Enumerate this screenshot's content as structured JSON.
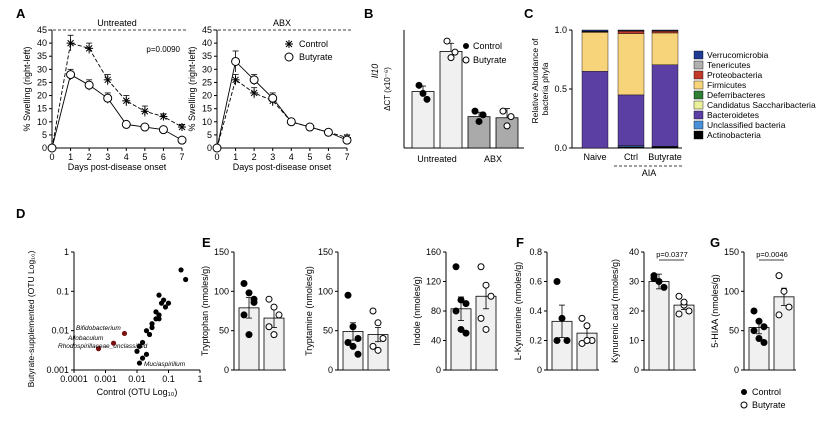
{
  "panels": {
    "A": "A",
    "B": "B",
    "C": "C",
    "D": "D",
    "E": "E",
    "F": "F",
    "G": "G"
  },
  "chart_data": [
    {
      "id": "A1",
      "type": "line",
      "title": "Untreated",
      "xlabel": "Days post-disease onset",
      "ylabel": "% Swelling (right-left)",
      "x": [
        0,
        1,
        2,
        3,
        4,
        5,
        6,
        7
      ],
      "ylim": [
        0,
        45
      ],
      "yticks": [
        0,
        5,
        10,
        15,
        20,
        25,
        30,
        35,
        40,
        45
      ],
      "annotation": "p=0.0090",
      "series": [
        {
          "name": "Control",
          "marker": "asterisk",
          "values": [
            0,
            40,
            38,
            26,
            18,
            14,
            12,
            8
          ],
          "err": [
            0,
            3,
            2,
            2,
            2,
            2,
            1,
            1
          ]
        },
        {
          "name": "Butyrate",
          "marker": "open-circle",
          "values": [
            0,
            28,
            24,
            19,
            9,
            8,
            7,
            3
          ],
          "err": [
            0,
            2,
            2,
            2,
            1,
            1,
            1,
            1
          ]
        }
      ]
    },
    {
      "id": "A2",
      "type": "line",
      "title": "ABX",
      "xlabel": "Days post-disease onset",
      "ylabel": "% Swelling (right-left)",
      "x": [
        0,
        1,
        2,
        3,
        4,
        5,
        6,
        7
      ],
      "ylim": [
        0,
        45
      ],
      "yticks": [
        0,
        5,
        10,
        15,
        20,
        25,
        30,
        35,
        40,
        45
      ],
      "series": [
        {
          "name": "Control",
          "marker": "asterisk",
          "values": [
            0,
            26,
            21,
            18,
            10,
            8,
            6,
            4
          ],
          "err": [
            0,
            2,
            2,
            2,
            1,
            1,
            1,
            1
          ]
        },
        {
          "name": "Butyrate",
          "marker": "open-circle",
          "values": [
            0,
            33,
            26,
            19,
            10,
            8,
            6,
            3
          ],
          "err": [
            0,
            4,
            2,
            2,
            1,
            1,
            1,
            1
          ]
        }
      ],
      "legend": [
        "Control",
        "Butyrate"
      ]
    },
    {
      "id": "B",
      "type": "bar",
      "ylabel_gene": "Il10",
      "ylabel": "ΔCT (x10⁻⁶)",
      "groups": [
        "Untreated",
        "ABX"
      ],
      "series": [
        {
          "name": "Control",
          "values": [
            153,
            85
          ],
          "err": [
            15,
            12
          ],
          "points": [
            [
              170,
              148,
              132
            ],
            [
              100,
              72,
              90
            ]
          ]
        },
        {
          "name": "Butyrate",
          "values": [
            262,
            82
          ],
          "err": [
            22,
            25
          ],
          "points": [
            [
              290,
              245,
              260
            ],
            [
              100,
              60,
              85
            ]
          ]
        }
      ],
      "ylim": [
        0,
        320
      ],
      "legend": [
        "Control",
        "Butyrate"
      ]
    },
    {
      "id": "C",
      "type": "bar",
      "stacked": true,
      "ylabel": "Relative Abundance of bacteria phyla",
      "categories": [
        "Naive",
        "Ctrl",
        "Butyrate"
      ],
      "group_label": "AIA",
      "yticks": [
        "0.0",
        "0.5",
        "1.0"
      ],
      "phyla": [
        {
          "name": "Verrucomicrobia",
          "color": "#1f3a93"
        },
        {
          "name": "Tenericutes",
          "color": "#b0b0b0"
        },
        {
          "name": "Proteobacteria",
          "color": "#c0392b"
        },
        {
          "name": "Firmicutes",
          "color": "#f7d37a"
        },
        {
          "name": "Deferribacteres",
          "color": "#2e7d32"
        },
        {
          "name": "Candidatus Saccharibacteria",
          "color": "#e9ef9a"
        },
        {
          "name": "Bacteroidetes",
          "color": "#5c3fa3"
        },
        {
          "name": "Unclassified bacteria",
          "color": "#4a90d9"
        },
        {
          "name": "Actinobacteria",
          "color": "#000000"
        }
      ],
      "fractions": {
        "Naive": [
          0.01,
          0.005,
          0.005,
          0.33,
          0.0,
          0.0,
          0.65,
          0.0,
          0.0
        ],
        "Ctrl": [
          0.005,
          0.005,
          0.02,
          0.52,
          0.0,
          0.0,
          0.43,
          0.01,
          0.01
        ],
        "Butyrate": [
          0.005,
          0.005,
          0.015,
          0.27,
          0.0,
          0.0,
          0.69,
          0.005,
          0.01
        ]
      }
    },
    {
      "id": "D",
      "type": "scatter",
      "scale": "log",
      "xlabel": "Control (OTU Log₁₀)",
      "ylabel": "Butyrate-supplemented (OTU Log₁₀)",
      "xticks": [
        "0.0001",
        "0.001",
        "0.01",
        "0.1",
        "1"
      ],
      "yticks": [
        "0.001",
        "0.01",
        "0.1",
        "1"
      ],
      "labels": [
        "Bifidobacterium",
        "Allobaculum",
        "Rhodospirillaceae_unclassified",
        "Muciaspirillum"
      ],
      "points_black": [
        [
          0.25,
          0.35
        ],
        [
          0.35,
          0.2
        ],
        [
          0.05,
          0.08
        ],
        [
          0.06,
          0.05
        ],
        [
          0.04,
          0.03
        ],
        [
          0.05,
          0.025
        ],
        [
          0.07,
          0.06
        ],
        [
          0.08,
          0.04
        ],
        [
          0.1,
          0.05
        ],
        [
          0.05,
          0.02
        ],
        [
          0.03,
          0.015
        ],
        [
          0.025,
          0.008
        ],
        [
          0.02,
          0.01
        ],
        [
          0.015,
          0.005
        ],
        [
          0.012,
          0.004
        ],
        [
          0.01,
          0.003
        ],
        [
          0.015,
          0.002
        ],
        [
          0.02,
          0.0025
        ],
        [
          0.012,
          0.0015
        ],
        [
          0.04,
          0.02
        ],
        [
          0.03,
          0.012
        ]
      ],
      "points_red": [
        [
          0.0006,
          0.0035
        ],
        [
          0.0018,
          0.0048
        ],
        [
          0.004,
          0.0085
        ]
      ]
    },
    {
      "id": "E1",
      "type": "bar",
      "ylabel": "Tryptophan (nmoles/g)",
      "ylim": [
        0,
        150
      ],
      "yticks": [
        0,
        50,
        100,
        150
      ],
      "series": [
        {
          "name": "Control",
          "value": 79,
          "err": 13,
          "points": [
            110,
            98,
            86,
            70,
            45,
            90
          ]
        },
        {
          "name": "Butyrate",
          "value": 66,
          "err": 12,
          "points": [
            90,
            80,
            70,
            55,
            45
          ]
        }
      ]
    },
    {
      "id": "E2",
      "type": "bar",
      "ylabel": "Tryptamine (nmoles/g)",
      "ylim": [
        0,
        150
      ],
      "yticks": [
        0,
        50,
        100,
        150
      ],
      "series": [
        {
          "name": "Control",
          "value": 49,
          "err": 11,
          "points": [
            95,
            55,
            40,
            35,
            30,
            20
          ]
        },
        {
          "name": "Butyrate",
          "value": 45,
          "err": 9,
          "points": [
            75,
            60,
            40,
            30,
            25
          ]
        }
      ]
    },
    {
      "id": "E3",
      "type": "bar",
      "ylabel": "Indole (nmoles/g)",
      "ylim": [
        0,
        160
      ],
      "yticks": [
        0,
        40,
        80,
        120,
        160
      ],
      "series": [
        {
          "name": "Control",
          "value": 83,
          "err": 16,
          "points": [
            140,
            95,
            90,
            80,
            55,
            50
          ]
        },
        {
          "name": "Butyrate",
          "value": 100,
          "err": 17,
          "points": [
            140,
            115,
            100,
            70,
            55
          ]
        }
      ]
    },
    {
      "id": "F1",
      "type": "bar",
      "ylabel": "L-Kynurenine (nmoles/g)",
      "ylim": [
        0,
        0.8
      ],
      "yticks": [
        0,
        0.2,
        0.4,
        0.6,
        0.8
      ],
      "series": [
        {
          "name": "Control",
          "value": 0.33,
          "err": 0.11,
          "points": [
            0.6,
            0.35,
            0.2,
            0.2
          ]
        },
        {
          "name": "Butyrate",
          "value": 0.25,
          "err": 0.05,
          "points": [
            0.35,
            0.3,
            0.2,
            0.18,
            0.2
          ]
        }
      ]
    },
    {
      "id": "F2",
      "type": "bar",
      "ylabel": "Kynurenic acid (nmoles/g)",
      "ylim": [
        0,
        40
      ],
      "yticks": [
        0,
        10,
        20,
        30,
        40
      ],
      "annotation": "p=0.0377",
      "series": [
        {
          "name": "Control",
          "value": 30,
          "err": 2.5,
          "points": [
            32,
            30,
            28,
            31
          ]
        },
        {
          "name": "Butyrate",
          "value": 22,
          "err": 1.5,
          "points": [
            25,
            22,
            20,
            19,
            23
          ]
        }
      ]
    },
    {
      "id": "G",
      "type": "bar",
      "ylabel": "5-HIAA (nmoles/g)",
      "ylim": [
        0,
        150
      ],
      "yticks": [
        0,
        50,
        100,
        150
      ],
      "annotation": "p=0.0046",
      "series": [
        {
          "name": "Control",
          "value": 54,
          "err": 8,
          "points": [
            75,
            62,
            55,
            50,
            40,
            35
          ]
        },
        {
          "name": "Butyrate",
          "value": 93,
          "err": 11,
          "points": [
            120,
            100,
            80,
            70
          ]
        }
      ],
      "legend": [
        "Control",
        "Butyrate"
      ]
    }
  ]
}
